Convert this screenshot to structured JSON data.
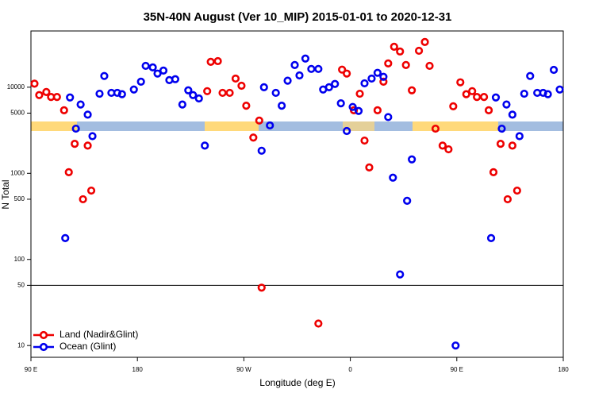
{
  "chart_data": {
    "type": "scatter",
    "title": "35N-40N August (Ver 10_MIP)   2015-01-01 to 2020-12-31",
    "x_label": "Longitude (deg E)",
    "y_label": "N Total",
    "log_y": true,
    "xlim": [
      90,
      540
    ],
    "xticks": [
      {
        "value": 90,
        "label": "90 E"
      },
      180,
      {
        "value": 270,
        "label": "90 W"
      },
      {
        "value": 360,
        "label": "0"
      },
      {
        "value": 450,
        "label": "90 E"
      },
      {
        "value": 540,
        "label": "180"
      }
    ],
    "ylim": [
      7.3,
      45000
    ],
    "yticks": [
      10,
      50,
      100,
      500,
      1000,
      5000,
      10000
    ],
    "hlines": [
      50
    ],
    "legend": "lower left",
    "series": [
      {
        "name": "Land (Nadir&Glint)",
        "color": "#ee0000",
        "x": [
          93,
          97,
          103,
          107,
          112,
          118,
          122,
          127,
          134,
          138,
          141,
          239,
          242,
          248,
          252,
          258,
          263,
          268,
          272,
          278,
          283,
          285,
          333,
          353,
          357,
          363,
          368,
          372,
          376,
          383,
          388,
          392,
          397,
          402,
          407,
          412,
          418,
          423,
          427,
          432,
          438,
          443,
          447,
          453,
          458,
          463,
          467,
          473,
          477,
          481,
          487,
          493,
          497,
          501
        ],
        "values": [
          11000,
          8100,
          8800,
          7700,
          7700,
          5400,
          1030,
          2200,
          500,
          2100,
          630,
          9000,
          19700,
          20100,
          8600,
          8600,
          12600,
          10400,
          6100,
          2600,
          4100,
          47,
          18,
          16000,
          14400,
          5400,
          8400,
          2400,
          1170,
          5400,
          11600,
          18900,
          29500,
          26000,
          18100,
          9200,
          26500,
          33500,
          17700,
          3300,
          2100,
          1900,
          6000,
          11400,
          8300,
          9000,
          7700,
          7700,
          5400,
          1030,
          2200,
          500,
          2100,
          630
        ]
      },
      {
        "name": "Ocean (Glint)",
        "color": "#0000ee",
        "x": [
          119,
          123,
          128,
          132,
          138,
          142,
          148,
          152,
          158,
          163,
          167,
          177,
          183,
          187,
          193,
          197,
          202,
          207,
          212,
          218,
          223,
          227,
          232,
          237,
          285,
          287,
          292,
          297,
          302,
          307,
          313,
          317,
          322,
          327,
          333,
          337,
          342,
          347,
          352,
          357,
          362,
          367,
          372,
          378,
          383,
          388,
          392,
          396,
          402,
          408,
          412,
          449,
          479,
          483,
          488,
          492,
          497,
          503,
          507,
          512,
          518,
          523,
          527,
          532,
          537
        ],
        "values": [
          177,
          7600,
          3300,
          6300,
          4800,
          2700,
          8400,
          13500,
          8600,
          8600,
          8300,
          9400,
          11600,
          17700,
          17000,
          14400,
          15600,
          12100,
          12400,
          6300,
          9200,
          8100,
          7400,
          2100,
          1830,
          10000,
          3600,
          8600,
          6100,
          11900,
          18100,
          13700,
          21500,
          16300,
          16300,
          9400,
          10000,
          10900,
          6500,
          3100,
          5900,
          5300,
          11100,
          12600,
          14700,
          13200,
          4500,
          890,
          67,
          480,
          1450,
          10,
          177,
          7600,
          3300,
          6300,
          4800,
          2700,
          8400,
          13500,
          8600,
          8600,
          8300,
          15900,
          9400
        ]
      }
    ]
  }
}
